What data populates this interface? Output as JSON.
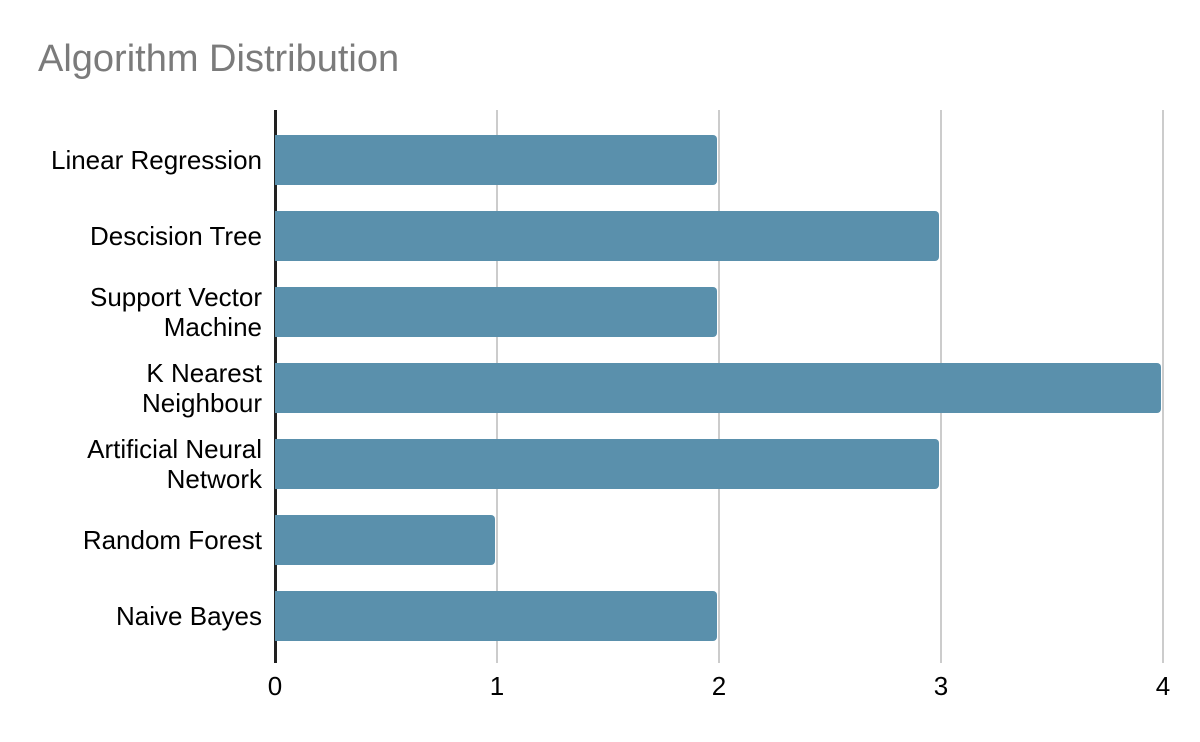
{
  "chart_data": {
    "type": "bar",
    "orientation": "horizontal",
    "title": "Algorithm Distribution",
    "categories": [
      "Linear Regression",
      "Descision Tree",
      "Support Vector Machine",
      "K Nearest Neighbour",
      "Artificial Neural Network",
      "Random Forest",
      "Naive Bayes"
    ],
    "values": [
      2,
      3,
      2,
      4,
      3,
      1,
      2
    ],
    "xlabel": "",
    "ylabel": "",
    "xlim": [
      0,
      4
    ],
    "x_ticks": [
      "0",
      "1",
      "2",
      "3",
      "4"
    ],
    "grid": true,
    "legend_position": "none",
    "colors": {
      "bar": "#5A90AC",
      "gridline": "#CCCCCC",
      "axis_line": "#212121",
      "label_text": "#000000",
      "title_text": "#7B7B7B",
      "background": "#FFFFFF"
    }
  }
}
